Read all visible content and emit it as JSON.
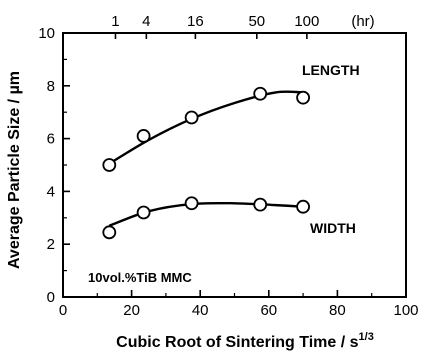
{
  "chart_data": {
    "type": "scatter",
    "xlabel": "Cubic Root of Sintering Time / s",
    "xlabel_superscript": "1/3",
    "ylabel": "Average Particle Size / µm",
    "xlim": [
      0,
      100
    ],
    "ylim": [
      0,
      10
    ],
    "x_ticks": [
      "0",
      "20",
      "40",
      "60",
      "80",
      "100"
    ],
    "y_ticks": [
      "0",
      "2",
      "4",
      "6",
      "8",
      "10"
    ],
    "top_axis": {
      "ticks": [
        {
          "label": "1",
          "x": 15.3
        },
        {
          "label": "4",
          "x": 24.3
        },
        {
          "label": "16",
          "x": 38.6
        },
        {
          "label": "50",
          "x": 56.5
        },
        {
          "label": "100",
          "x": 71.1
        }
      ],
      "unit_label": "(hr)"
    },
    "annotation": "10vol.%TiB MMC",
    "grid": false,
    "series": [
      {
        "name": "LENGTH",
        "points": [
          [
            13.5,
            5.0
          ],
          [
            23.5,
            6.1
          ],
          [
            37.5,
            6.8
          ],
          [
            57.5,
            7.7
          ],
          [
            70.0,
            7.55
          ]
        ],
        "fit": [
          [
            13.5,
            5.05
          ],
          [
            25,
            5.95
          ],
          [
            37.5,
            6.75
          ],
          [
            50,
            7.35
          ],
          [
            62,
            7.75
          ],
          [
            70,
            7.75
          ]
        ]
      },
      {
        "name": "WIDTH",
        "points": [
          [
            13.5,
            2.45
          ],
          [
            23.5,
            3.2
          ],
          [
            37.5,
            3.55
          ],
          [
            57.5,
            3.5
          ],
          [
            70.0,
            3.42
          ]
        ],
        "fit": [
          [
            13.5,
            2.7
          ],
          [
            25,
            3.25
          ],
          [
            37.5,
            3.52
          ],
          [
            50,
            3.55
          ],
          [
            62,
            3.48
          ],
          [
            70,
            3.42
          ]
        ]
      }
    ]
  }
}
